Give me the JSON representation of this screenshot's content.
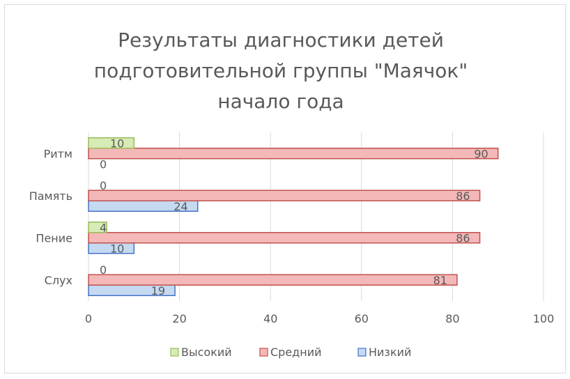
{
  "chart_data": {
    "type": "bar",
    "orientation": "horizontal",
    "title_lines": [
      "Результаты диагностики детей",
      "подготовительной группы \"Маячок\"",
      "начало года"
    ],
    "categories": [
      "Слух",
      "Пение",
      "Память",
      "Ритм"
    ],
    "series": [
      {
        "name": "Низкий",
        "values": [
          19,
          10,
          24,
          0
        ],
        "color": "#4472c4",
        "fill": "#c5d9f1"
      },
      {
        "name": "Средний",
        "values": [
          81,
          86,
          86,
          90
        ],
        "color": "#c0504d",
        "fill": "#f4b8b8"
      },
      {
        "name": "Высокий",
        "values": [
          0,
          4,
          0,
          10
        ],
        "color": "#9bbb59",
        "fill": "#d7ebb6"
      }
    ],
    "xlim": [
      0,
      100
    ],
    "xticks": [
      0,
      20,
      40,
      60,
      80,
      100
    ],
    "grid": true,
    "legend_position": "bottom"
  }
}
